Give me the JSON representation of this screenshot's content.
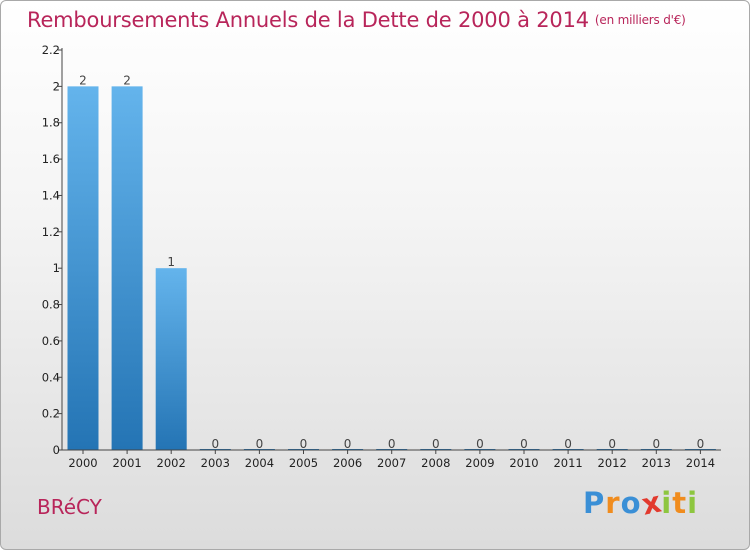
{
  "chart_data": {
    "type": "bar",
    "title": "Remboursements Annuels de la Dette de 2000 à 2014",
    "unit_note": "(en milliers d'€)",
    "categories": [
      "2000",
      "2001",
      "2002",
      "2003",
      "2004",
      "2005",
      "2006",
      "2007",
      "2008",
      "2009",
      "2010",
      "2011",
      "2012",
      "2013",
      "2014"
    ],
    "values": [
      2,
      2,
      1,
      0,
      0,
      0,
      0,
      0,
      0,
      0,
      0,
      0,
      0,
      0,
      0
    ],
    "data_labels": [
      "2",
      "2",
      "1",
      "0",
      "0",
      "0",
      "0",
      "0",
      "0",
      "0",
      "0",
      "0",
      "0",
      "0",
      "0"
    ],
    "ylim": [
      0,
      2.2
    ],
    "yticks": [
      0,
      0.2,
      0.4,
      0.6,
      0.8,
      1,
      1.2,
      1.4,
      1.6,
      1.8,
      2,
      2.2
    ],
    "ytick_labels": [
      "0",
      "0.2",
      "0.4",
      "0.6",
      "0.8",
      "1",
      "1.2",
      "1.4",
      "1.6",
      "1.8",
      "2",
      "2.2"
    ],
    "xlabel": "",
    "ylabel": "",
    "grid": false,
    "legend": "none"
  },
  "footer": {
    "commune": "BRéCY",
    "logo_letters": [
      "P",
      "r",
      "o",
      "x",
      "i",
      "t",
      "i"
    ],
    "logo_text": "Proxiti"
  },
  "colors": {
    "title": "#b8255a",
    "bar_top": "#64b4ec",
    "bar_bottom": "#2474b4",
    "logo": [
      "#3a8fd6",
      "#f08c1e",
      "#3a8fd6",
      "#e23a2e",
      "#8dc63f",
      "#f08c1e",
      "#8dc63f"
    ]
  }
}
